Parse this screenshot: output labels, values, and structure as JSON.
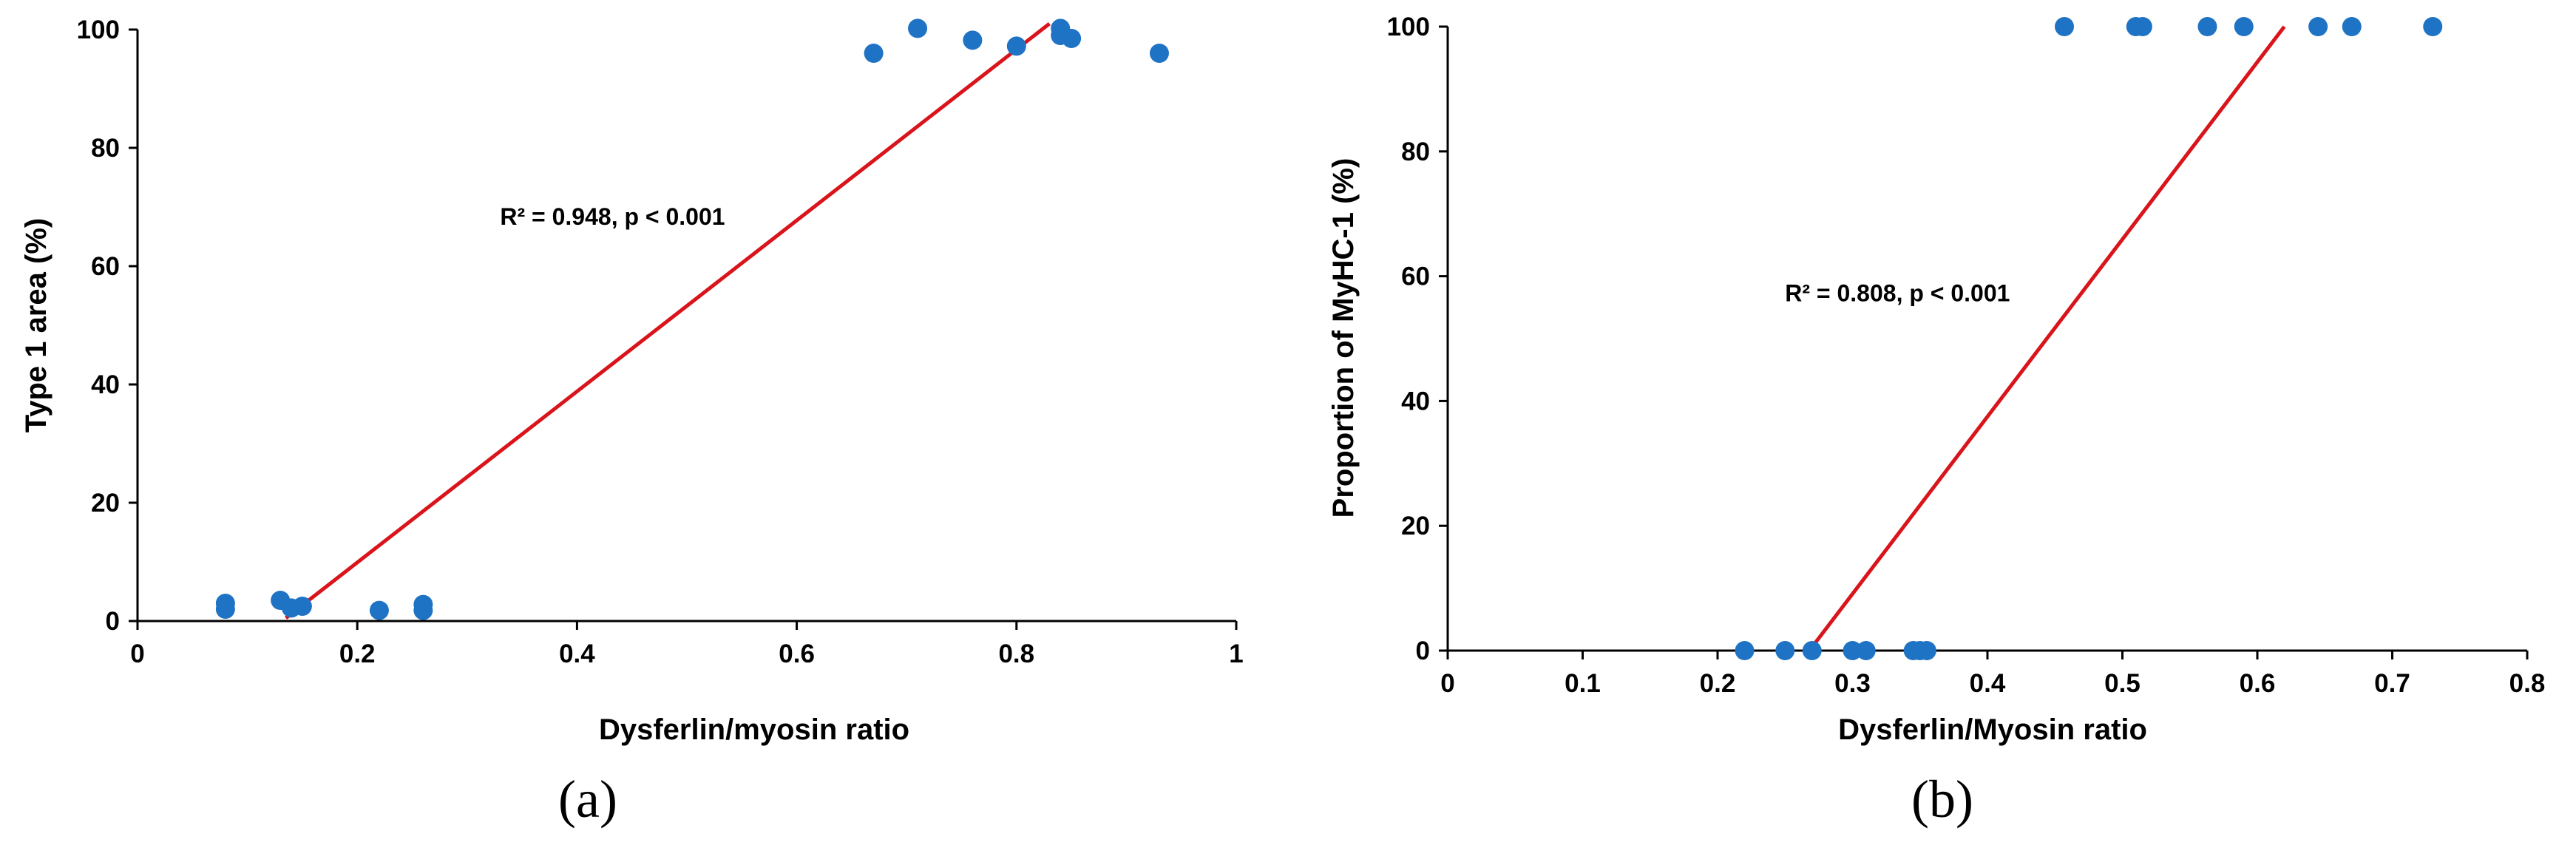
{
  "chart_data": [
    {
      "type": "scatter",
      "panel_label": "(a)",
      "title": "",
      "xlabel": "Dysferlin/myosin ratio",
      "ylabel": "Type 1 area (%)",
      "xlim": [
        0,
        1
      ],
      "ylim": [
        0,
        100
      ],
      "xticks": [
        "0",
        "0.2",
        "0.4",
        "0.6",
        "0.8",
        "1"
      ],
      "yticks": [
        "0",
        "20",
        "40",
        "60",
        "80",
        "100"
      ],
      "grid": false,
      "point_color": "#1f73c4",
      "trend_color": "#d9141b",
      "points": [
        {
          "x": 0.08,
          "y": 3.0
        },
        {
          "x": 0.08,
          "y": 2.0
        },
        {
          "x": 0.13,
          "y": 3.5
        },
        {
          "x": 0.14,
          "y": 2.2
        },
        {
          "x": 0.15,
          "y": 2.5
        },
        {
          "x": 0.22,
          "y": 1.8
        },
        {
          "x": 0.26,
          "y": 2.8
        },
        {
          "x": 0.26,
          "y": 1.8
        },
        {
          "x": 0.67,
          "y": 96.0
        },
        {
          "x": 0.71,
          "y": 100.2
        },
        {
          "x": 0.76,
          "y": 98.2
        },
        {
          "x": 0.8,
          "y": 97.2
        },
        {
          "x": 0.84,
          "y": 100.2
        },
        {
          "x": 0.84,
          "y": 99.0
        },
        {
          "x": 0.85,
          "y": 98.5
        },
        {
          "x": 0.93,
          "y": 96.0
        }
      ],
      "trendline": {
        "x": [
          0.135,
          0.83
        ],
        "y": [
          0.5,
          101.0
        ]
      },
      "annotation": {
        "text": "R² = 0.948, p < 0.001",
        "x": 0.33,
        "y": 67
      }
    },
    {
      "type": "scatter",
      "panel_label": "(b)",
      "title": "",
      "xlabel": "Dysferlin/Myosin ratio",
      "ylabel": "Proportion of MyHC-1 (%)",
      "xlim": [
        0,
        0.8
      ],
      "ylim": [
        0,
        100
      ],
      "xticks": [
        "0",
        "0.1",
        "0.2",
        "0.3",
        "0.4",
        "0.5",
        "0.6",
        "0.7",
        "0.8"
      ],
      "yticks": [
        "0",
        "20",
        "40",
        "60",
        "80",
        "100"
      ],
      "grid": false,
      "point_color": "#1f73c4",
      "trend_color": "#d9141b",
      "points": [
        {
          "x": 0.22,
          "y": 0
        },
        {
          "x": 0.25,
          "y": 0
        },
        {
          "x": 0.27,
          "y": 0
        },
        {
          "x": 0.3,
          "y": 0
        },
        {
          "x": 0.31,
          "y": 0
        },
        {
          "x": 0.345,
          "y": 0
        },
        {
          "x": 0.35,
          "y": 0
        },
        {
          "x": 0.355,
          "y": 0
        },
        {
          "x": 0.457,
          "y": 100
        },
        {
          "x": 0.51,
          "y": 100
        },
        {
          "x": 0.515,
          "y": 100
        },
        {
          "x": 0.563,
          "y": 100
        },
        {
          "x": 0.59,
          "y": 100
        },
        {
          "x": 0.645,
          "y": 100
        },
        {
          "x": 0.67,
          "y": 100
        },
        {
          "x": 0.73,
          "y": 100
        }
      ],
      "trendline": {
        "x": [
          0.268,
          0.62
        ],
        "y": [
          0,
          100
        ]
      },
      "annotation": {
        "text": "R² = 0.808, p < 0.001",
        "x": 0.25,
        "y": 56
      }
    }
  ]
}
